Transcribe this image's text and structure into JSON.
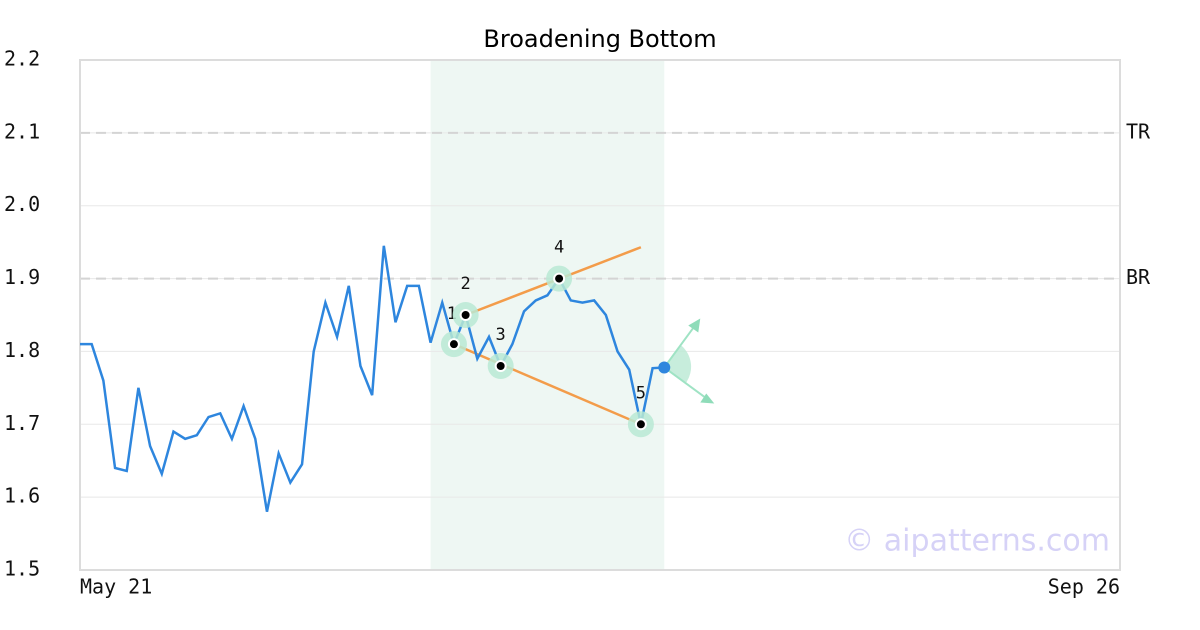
{
  "chart_data": {
    "type": "line",
    "title": "Broadening Bottom",
    "categories": [
      "May 21",
      null,
      null,
      null,
      null,
      null,
      null,
      null,
      null,
      null,
      null,
      null,
      null,
      null,
      null,
      null,
      null,
      null,
      null,
      null,
      null,
      null,
      null,
      null,
      null,
      null,
      null,
      null,
      null,
      null,
      null,
      null,
      null,
      null,
      null,
      null,
      null,
      null,
      null,
      null,
      null,
      null,
      null,
      null,
      null,
      null,
      null,
      null,
      null,
      null,
      null,
      null,
      null,
      null,
      null,
      null,
      null,
      null,
      null,
      null,
      null,
      null,
      null,
      null,
      null,
      null,
      null,
      null,
      null,
      null,
      null,
      null,
      null,
      null,
      null,
      null,
      null,
      null,
      null,
      null,
      null,
      null,
      null,
      null,
      null,
      null,
      null,
      null,
      null,
      "Sep 26"
    ],
    "values": [
      1.81,
      1.81,
      1.76,
      1.64,
      1.636,
      1.75,
      1.67,
      1.632,
      1.69,
      1.68,
      1.685,
      1.71,
      1.715,
      1.68,
      1.725,
      1.68,
      1.58,
      1.66,
      1.62,
      1.645,
      1.8,
      1.867,
      1.82,
      1.89,
      1.78,
      1.74,
      1.945,
      1.84,
      1.89,
      1.89,
      1.812,
      1.867,
      1.81,
      1.85,
      1.79,
      1.82,
      1.78,
      1.81,
      1.855,
      1.87,
      1.877,
      1.9,
      1.87,
      1.867,
      1.87,
      1.85,
      1.8,
      1.775,
      1.7,
      1.777,
      1.778,
      null,
      null,
      null,
      null,
      null,
      null,
      null,
      null,
      null,
      null,
      null,
      null,
      null,
      null,
      null,
      null,
      null,
      null,
      null,
      null,
      null,
      null,
      null,
      null,
      null,
      null,
      null,
      null,
      null,
      null,
      null,
      null,
      null,
      null,
      null,
      null,
      null,
      null,
      null
    ],
    "color": "#2e86de",
    "ylim": [
      1.5,
      2.2
    ],
    "yticks": [
      1.5,
      1.6,
      1.7,
      1.8,
      1.9,
      {
        "value": 2,
        "label": "2.0"
      },
      2.1,
      2.2
    ],
    "grid": true,
    "highlight": [
      30,
      50
    ],
    "levels": [
      {
        "label": "TR",
        "value": 2.1
      },
      {
        "label": "BR",
        "value": 1.9
      }
    ],
    "points": [
      {
        "label": "1",
        "index": 32,
        "value": 1.81
      },
      {
        "label": "2",
        "index": 33,
        "value": 1.85
      },
      {
        "label": "3",
        "index": 36,
        "value": 1.78
      },
      {
        "label": "4",
        "index": 41,
        "value": 1.9
      },
      {
        "label": "5",
        "index": 48,
        "value": 1.7
      }
    ],
    "trendlines": [
      {
        "index": [
          33,
          48
        ],
        "values": [
          1.85,
          1.943
        ]
      },
      {
        "index": [
          32,
          48
        ],
        "values": [
          1.81,
          1.7
        ]
      }
    ],
    "watermark": "© aipatterns.com"
  }
}
